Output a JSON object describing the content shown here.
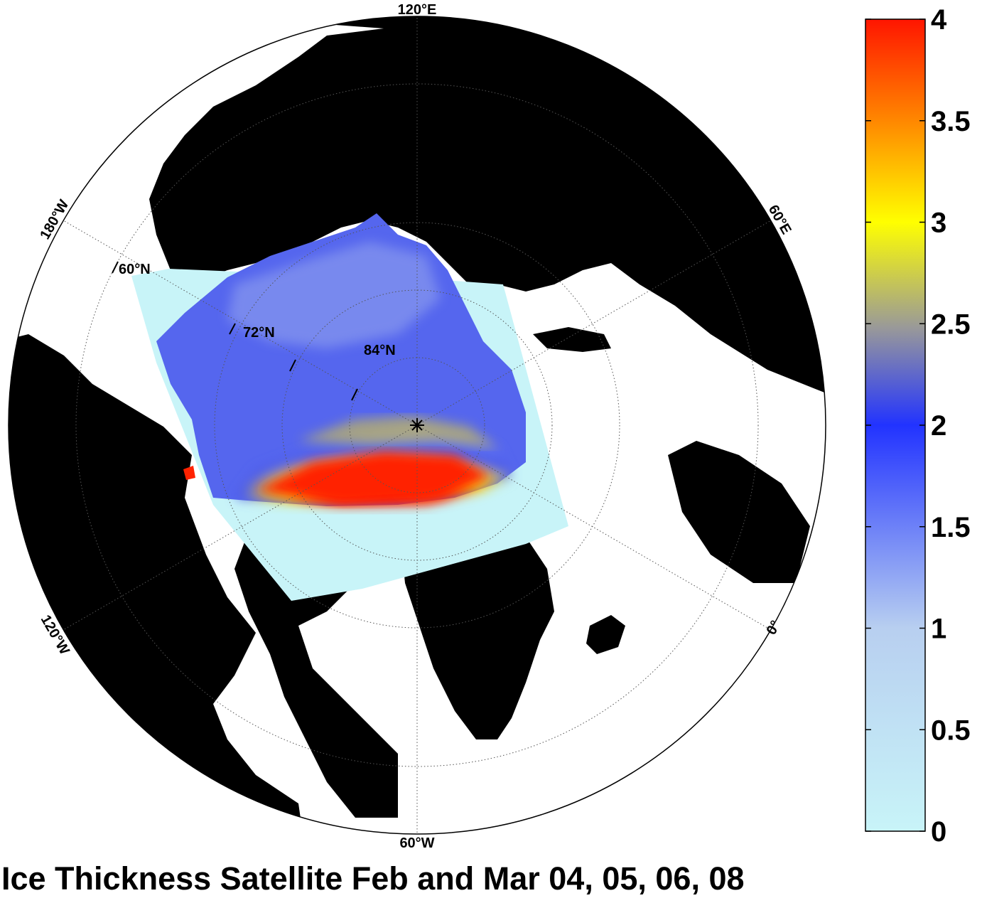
{
  "title": "Ice Thickness Satellite Feb and Mar 04, 05, 06, 08",
  "meridian_labels": {
    "top": "120°E",
    "right": "60°E",
    "bottom_right": "0°",
    "bottom": "60°W",
    "left_lower": "120°W",
    "left_upper": "180°W"
  },
  "latitude_labels": {
    "outer": "60°N",
    "middle": "72°N",
    "inner": "84°N"
  },
  "colorbar": {
    "min": 0,
    "max": 4,
    "tick_labels": [
      "0",
      "0.5",
      "1",
      "1.5",
      "2",
      "2.5",
      "3",
      "3.5",
      "4"
    ],
    "colors": {
      "low": "#c8f4f8",
      "mid_low": "#b8cff0",
      "mid": "#3344ee",
      "mid_high": "#b8b060",
      "high_yellow": "#ffff00",
      "high_orange": "#ff8c00",
      "max": "#ff1500"
    }
  },
  "colors": {
    "land": "#000000",
    "ocean": "#ffffff",
    "no_data_swath": "#c8f4f8"
  }
}
